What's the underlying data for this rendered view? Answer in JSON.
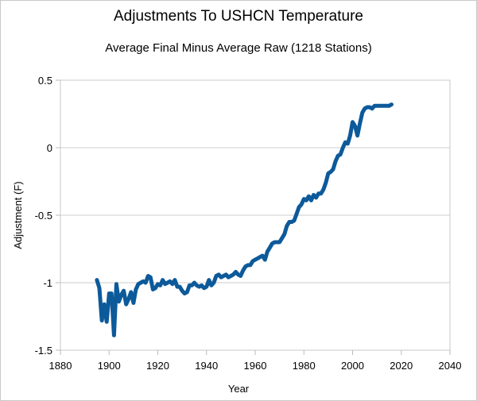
{
  "chart_data": {
    "type": "line",
    "title": "Adjustments To USHCN Temperature",
    "subtitle": "Average Final Minus Average Raw (1218 Stations)",
    "xlabel": "Year",
    "ylabel": "Adjustment (F)",
    "xlim": [
      1880,
      2040
    ],
    "ylim": [
      -1.5,
      0.5
    ],
    "xticks": [
      1880,
      1900,
      1920,
      1940,
      1960,
      1980,
      2000,
      2020,
      2040
    ],
    "yticks": [
      0.5,
      0,
      -0.5,
      -1,
      -1.5
    ],
    "ytick_labels": [
      "0.5",
      "0",
      "-0.5",
      "-1",
      "-1.5"
    ],
    "grid": "horizontal",
    "legend": "none",
    "line_color": "#0d5a9a",
    "series": [
      {
        "name": "Final minus Raw",
        "x": [
          1895,
          1896,
          1897,
          1898,
          1899,
          1900,
          1901,
          1902,
          1903,
          1904,
          1905,
          1906,
          1907,
          1908,
          1909,
          1910,
          1911,
          1912,
          1913,
          1914,
          1915,
          1916,
          1917,
          1918,
          1919,
          1920,
          1921,
          1922,
          1923,
          1924,
          1925,
          1926,
          1927,
          1928,
          1929,
          1930,
          1931,
          1932,
          1933,
          1934,
          1935,
          1936,
          1937,
          1938,
          1939,
          1940,
          1941,
          1942,
          1943,
          1944,
          1945,
          1946,
          1947,
          1948,
          1949,
          1950,
          1951,
          1952,
          1953,
          1954,
          1955,
          1956,
          1957,
          1958,
          1959,
          1960,
          1961,
          1962,
          1963,
          1964,
          1965,
          1966,
          1967,
          1968,
          1969,
          1970,
          1971,
          1972,
          1973,
          1974,
          1975,
          1976,
          1977,
          1978,
          1979,
          1980,
          1981,
          1982,
          1983,
          1984,
          1985,
          1986,
          1987,
          1988,
          1989,
          1990,
          1991,
          1992,
          1993,
          1994,
          1995,
          1996,
          1997,
          1998,
          1999,
          2000,
          2001,
          2002,
          2003,
          2004,
          2005,
          2006,
          2007,
          2008,
          2009,
          2010,
          2011,
          2012,
          2013,
          2014,
          2015,
          2016
        ],
        "values": [
          -0.98,
          -1.04,
          -1.28,
          -1.16,
          -1.29,
          -1.08,
          -1.08,
          -1.39,
          -1.01,
          -1.14,
          -1.09,
          -1.06,
          -1.16,
          -1.12,
          -1.07,
          -1.15,
          -1.05,
          -1.01,
          -1.0,
          -0.99,
          -1.0,
          -0.95,
          -0.96,
          -1.05,
          -1.04,
          -1.01,
          -1.02,
          -0.98,
          -1.01,
          -1.0,
          -0.99,
          -1.01,
          -0.98,
          -1.03,
          -1.03,
          -1.06,
          -1.08,
          -1.07,
          -1.02,
          -1.02,
          -1.0,
          -1.02,
          -1.03,
          -1.02,
          -1.04,
          -1.03,
          -0.98,
          -1.02,
          -1.0,
          -0.95,
          -0.94,
          -0.96,
          -0.95,
          -0.94,
          -0.96,
          -0.95,
          -0.94,
          -0.92,
          -0.94,
          -0.95,
          -0.91,
          -0.88,
          -0.87,
          -0.87,
          -0.84,
          -0.83,
          -0.82,
          -0.81,
          -0.8,
          -0.83,
          -0.77,
          -0.74,
          -0.71,
          -0.7,
          -0.7,
          -0.7,
          -0.67,
          -0.64,
          -0.58,
          -0.55,
          -0.55,
          -0.54,
          -0.49,
          -0.44,
          -0.42,
          -0.38,
          -0.39,
          -0.36,
          -0.39,
          -0.35,
          -0.37,
          -0.34,
          -0.34,
          -0.31,
          -0.26,
          -0.19,
          -0.18,
          -0.16,
          -0.1,
          -0.06,
          -0.05,
          0.0,
          0.04,
          0.03,
          0.09,
          0.19,
          0.16,
          0.09,
          0.18,
          0.26,
          0.29,
          0.3,
          0.3,
          0.29,
          0.31,
          0.31,
          0.31,
          0.31,
          0.31,
          0.31,
          0.31,
          0.32
        ]
      }
    ]
  }
}
